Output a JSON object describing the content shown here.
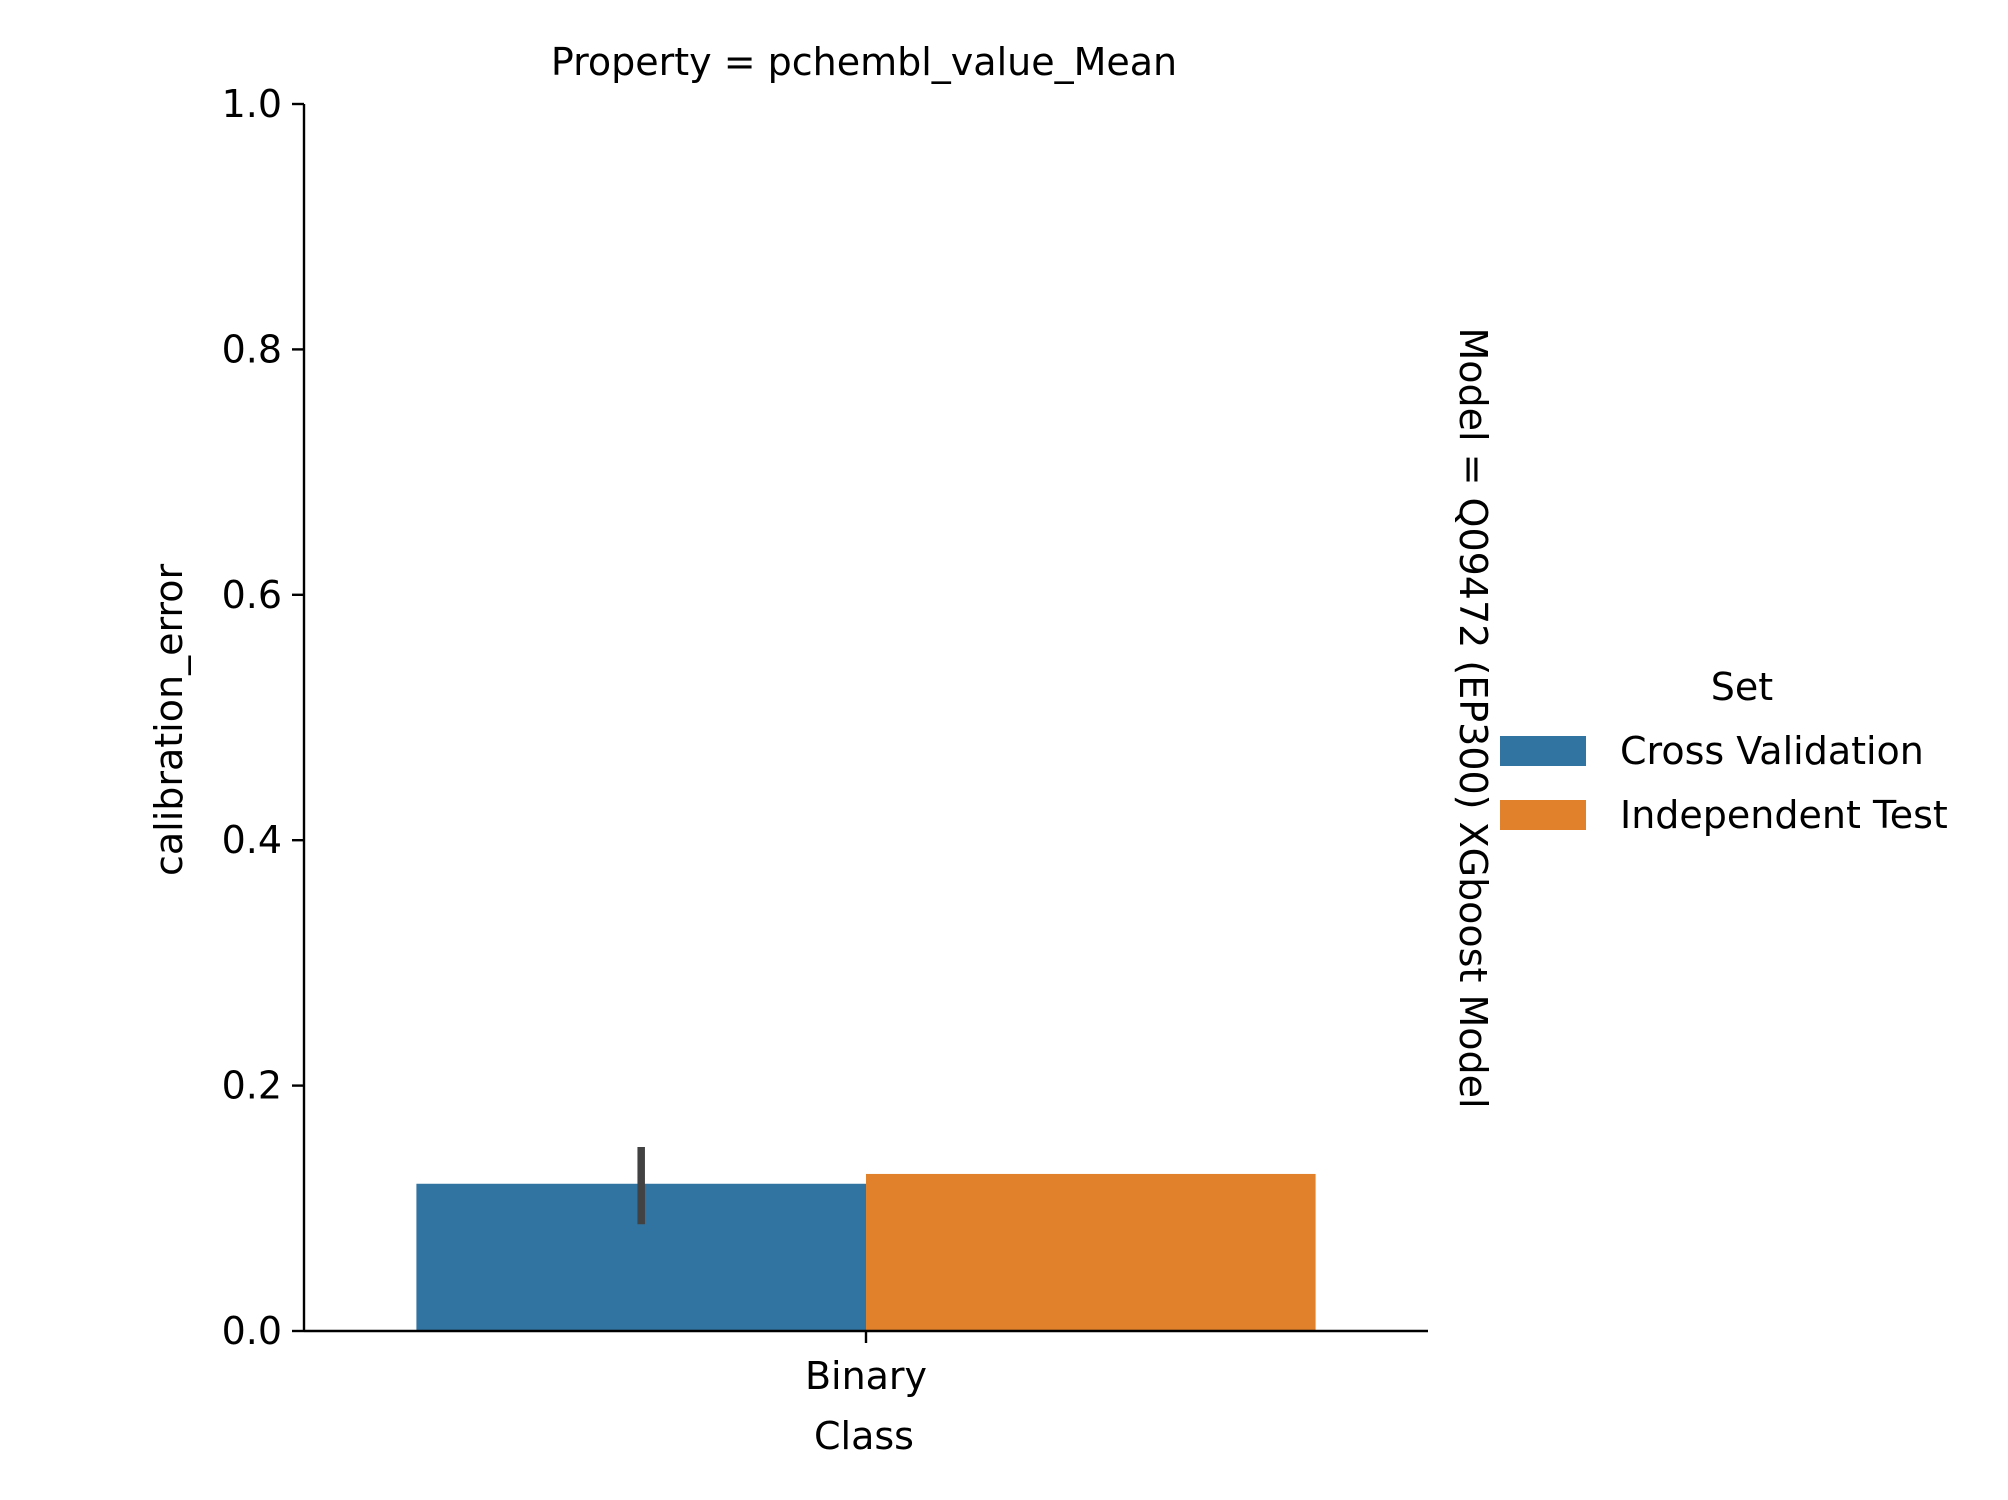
{
  "chart_data": {
    "type": "bar",
    "facet_title": "Property = pchembl_value_Mean",
    "row_label": "Model = Q09472 (EP300) XGboost Model",
    "xlabel": "Class",
    "ylabel": "calibration_error",
    "categories": [
      "Binary"
    ],
    "ylim": [
      0,
      1.0
    ],
    "yticks": [
      "0.0",
      "0.2",
      "0.4",
      "0.6",
      "0.8",
      "1.0"
    ],
    "grid": false,
    "legend": {
      "title": "Set",
      "placement": "right"
    },
    "series": [
      {
        "name": "Cross Validation",
        "color": "#3274a1",
        "values": [
          0.12
        ],
        "error": [
          [
            0.087,
            0.15
          ]
        ]
      },
      {
        "name": "Independent Test",
        "color": "#e1812c",
        "values": [
          0.128
        ]
      }
    ]
  }
}
